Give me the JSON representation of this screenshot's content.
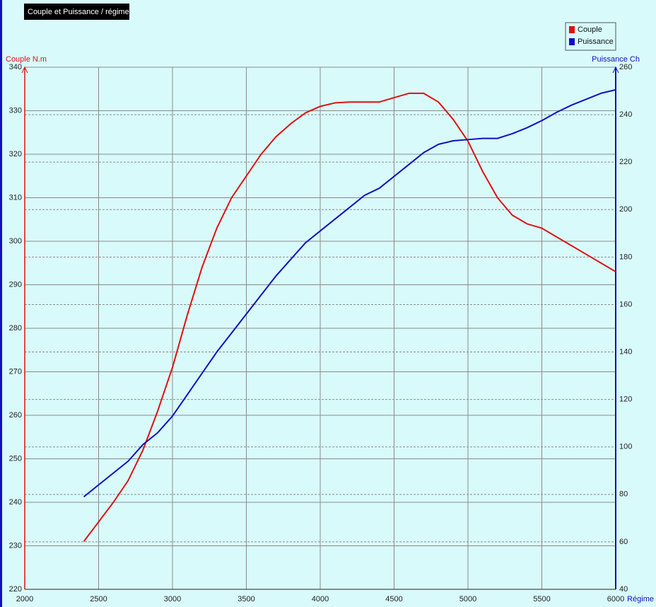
{
  "chart_data": {
    "type": "line",
    "title": "Couple et Puissance / régime",
    "ylabel": "Couple N.m",
    "y2label": "Puissance Ch",
    "xlabel": "Régime",
    "x": [
      2400,
      2500,
      2600,
      2700,
      2800,
      2900,
      3000,
      3100,
      3200,
      3300,
      3400,
      3500,
      3600,
      3700,
      3800,
      3900,
      4000,
      4100,
      4200,
      4300,
      4400,
      4500,
      4600,
      4700,
      4800,
      4900,
      5000,
      5100,
      5200,
      5300,
      5400,
      5500,
      5600,
      5700,
      5800,
      5900,
      6000
    ],
    "series": [
      {
        "name": "Couple",
        "color": "#e01010",
        "axis": "y",
        "values": [
          231,
          235.5,
          240,
          245,
          252,
          261,
          271,
          283,
          294,
          303,
          310,
          315,
          320,
          324,
          327,
          329.5,
          331,
          331.8,
          332,
          332,
          332,
          333,
          334,
          334,
          332,
          328,
          323,
          316,
          310,
          306,
          304,
          303,
          301,
          299,
          297,
          295,
          293
        ]
      },
      {
        "name": "Puissance",
        "color": "#1010c0",
        "axis": "y2",
        "values": [
          79,
          84,
          89,
          94,
          101,
          106,
          113,
          122,
          131,
          140,
          148,
          156,
          164,
          172,
          179,
          186,
          191,
          196,
          201,
          206,
          209,
          214,
          219,
          224,
          227.5,
          229,
          229.5,
          230,
          230,
          232,
          234.5,
          237.5,
          241,
          244,
          246.5,
          249,
          250.5
        ]
      }
    ],
    "xlim": [
      2000,
      6000
    ],
    "xticks": [
      2000,
      2500,
      3000,
      3500,
      4000,
      4500,
      5000,
      5500,
      6000
    ],
    "ylim": [
      220,
      340
    ],
    "yticks": [
      220,
      230,
      240,
      250,
      260,
      270,
      280,
      290,
      300,
      310,
      320,
      330,
      340
    ],
    "y2lim": [
      40,
      260
    ],
    "y2ticks": [
      40,
      60,
      80,
      100,
      120,
      140,
      160,
      180,
      200,
      220,
      240,
      260
    ],
    "grid": true,
    "legend": "top-right"
  }
}
